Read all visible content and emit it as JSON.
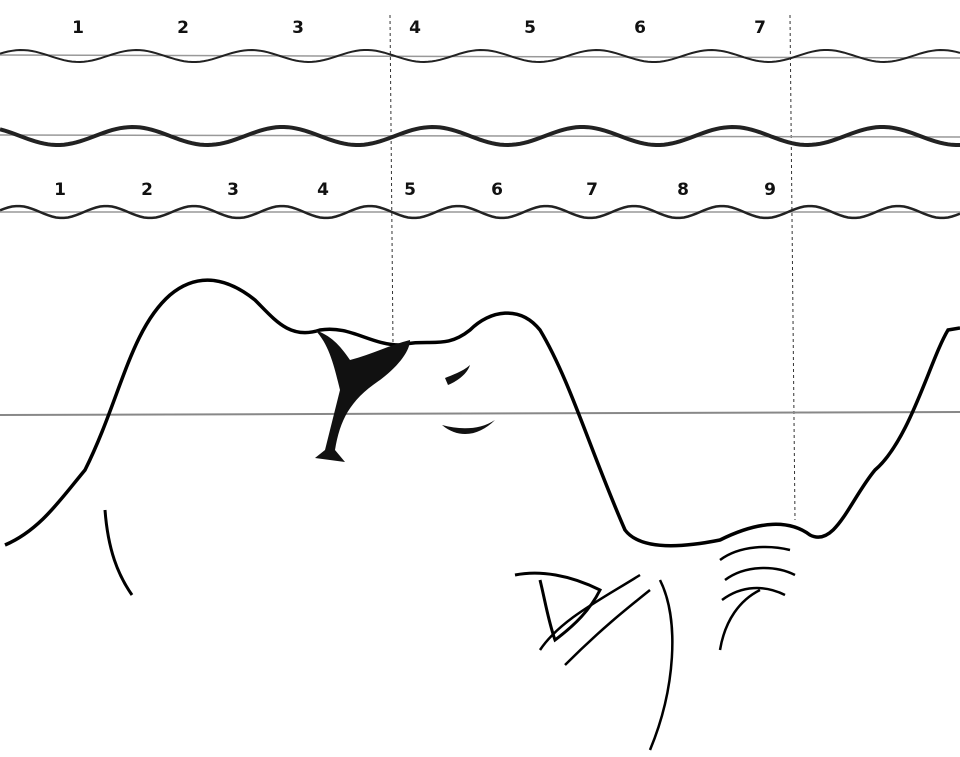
{
  "rows": [
    {
      "labels": [
        "1",
        "2",
        "3",
        "4",
        "5",
        "6",
        "7"
      ]
    },
    {
      "labels": [
        "1",
        "2",
        "3",
        "4",
        "5",
        "6",
        "7",
        "8",
        "9"
      ]
    }
  ]
}
